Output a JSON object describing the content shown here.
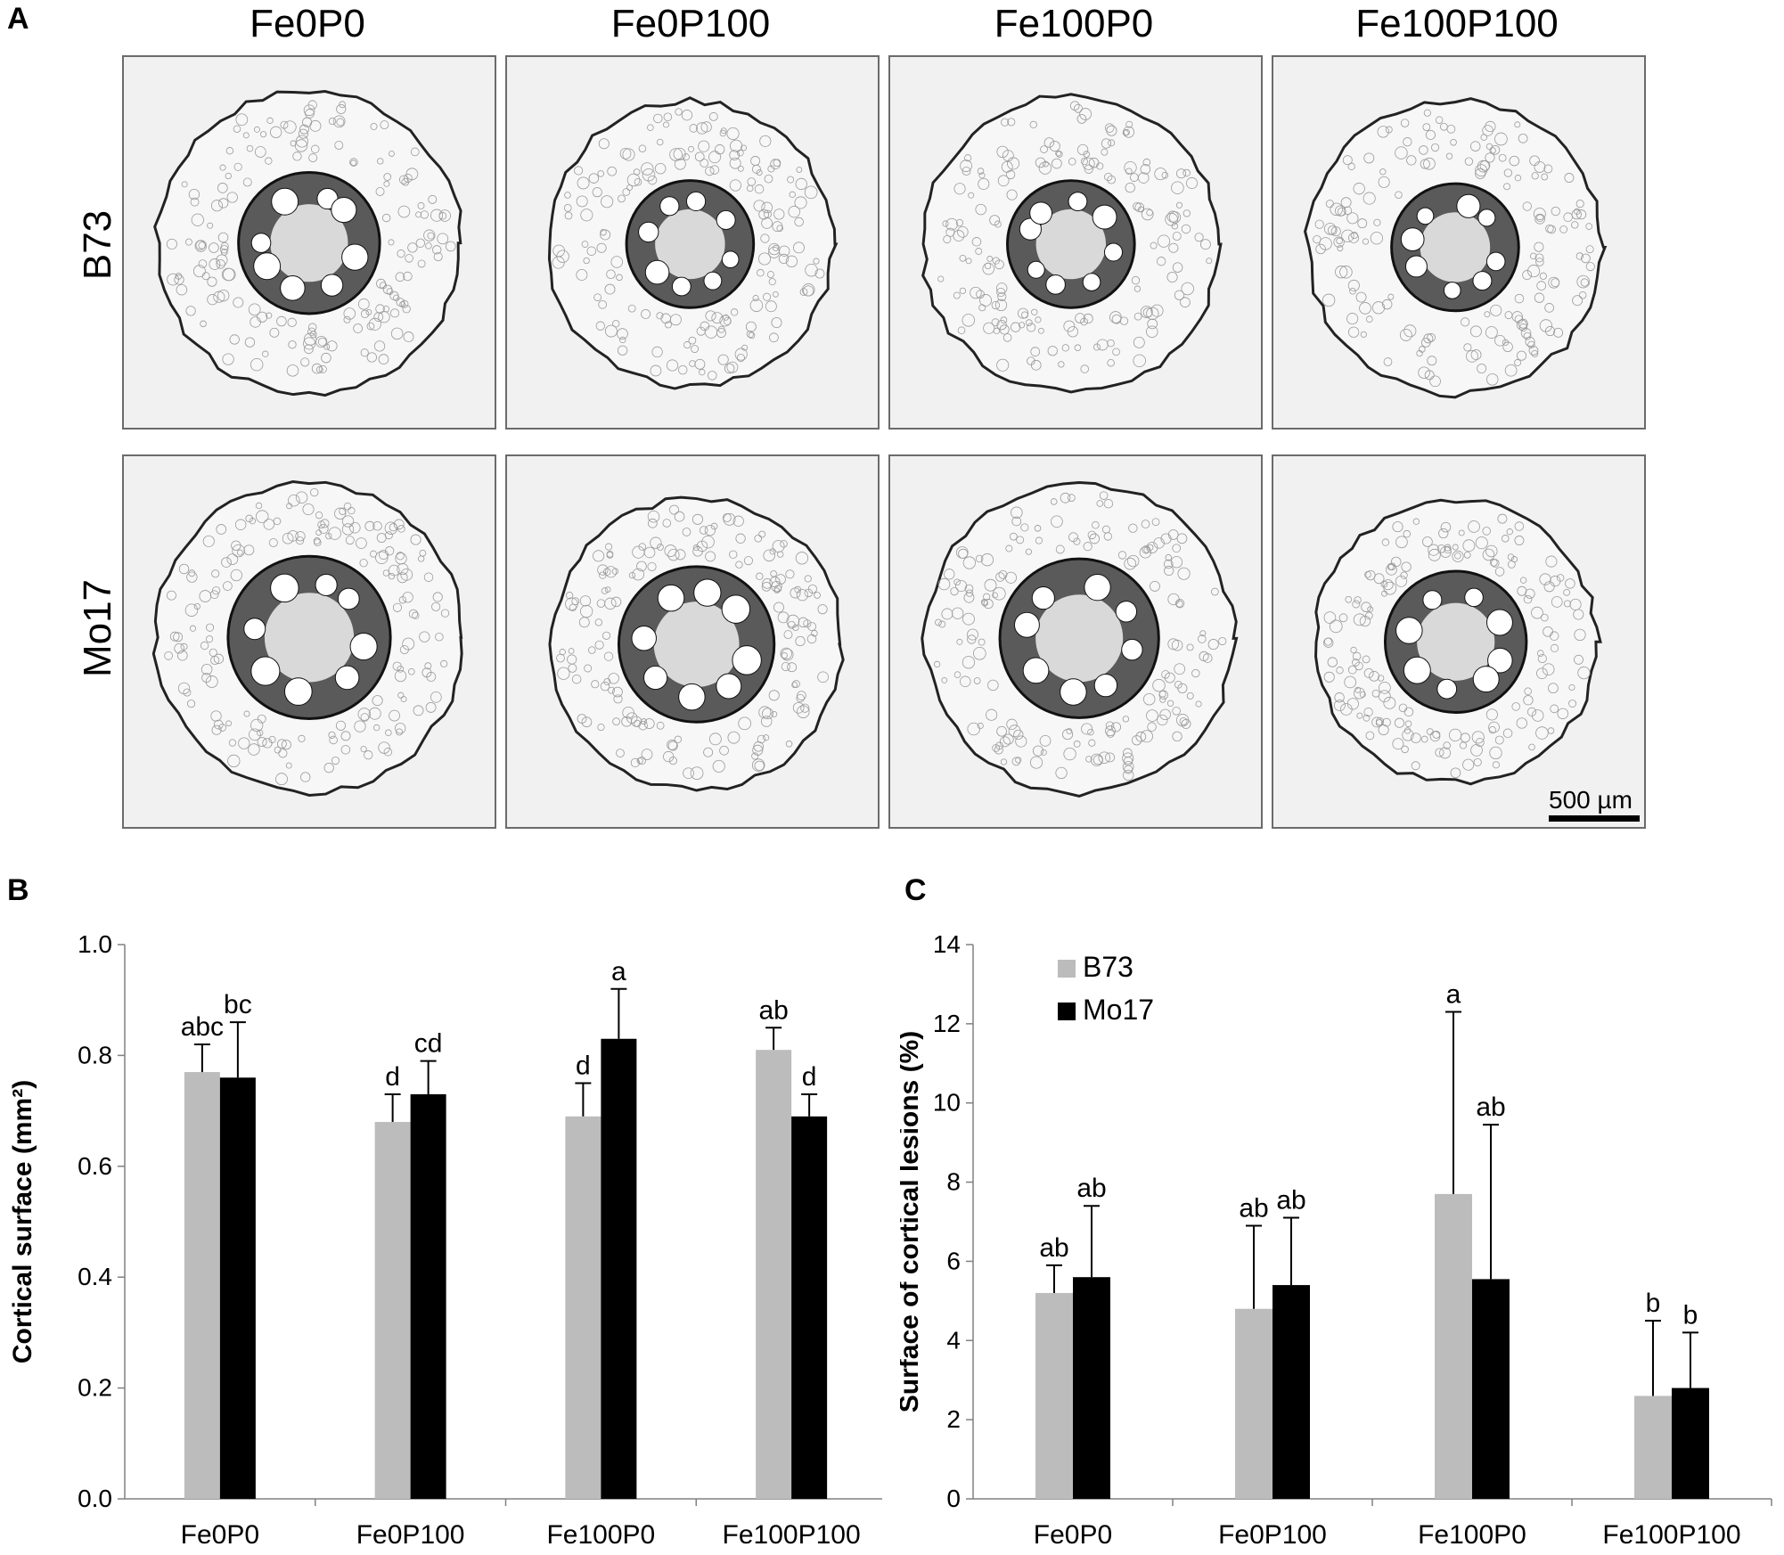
{
  "panel_a": {
    "letter": "A",
    "columns": [
      "Fe0P0",
      "Fe0P100",
      "Fe100P0",
      "Fe100P100"
    ],
    "rows": [
      "B73",
      "Mo17"
    ],
    "scale_bar_label": "500 µm",
    "micrographs": [
      {
        "row": "B73",
        "column": "Fe0P0"
      },
      {
        "row": "B73",
        "column": "Fe0P100"
      },
      {
        "row": "B73",
        "column": "Fe100P0"
      },
      {
        "row": "B73",
        "column": "Fe100P100"
      },
      {
        "row": "Mo17",
        "column": "Fe0P0"
      },
      {
        "row": "Mo17",
        "column": "Fe0P100"
      },
      {
        "row": "Mo17",
        "column": "Fe100P0"
      },
      {
        "row": "Mo17",
        "column": "Fe100P100"
      }
    ]
  },
  "chart_data": [
    {
      "panel": "B",
      "type": "bar",
      "categories": [
        "Fe0P0",
        "Fe0P100",
        "Fe100P0",
        "Fe100P100"
      ],
      "ylabel": "Cortical surface (mm²)",
      "ylim": [
        0,
        1.0
      ],
      "yticks": [
        "0.0",
        "0.2",
        "0.4",
        "0.6",
        "0.8",
        "1.0"
      ],
      "legend": "none",
      "series": [
        {
          "name": "B73",
          "color": "#bcbcbc",
          "values": [
            0.77,
            0.68,
            0.69,
            0.81
          ],
          "errors": [
            0.05,
            0.05,
            0.06,
            0.04
          ],
          "letters": [
            "abc",
            "d",
            "d",
            "ab"
          ]
        },
        {
          "name": "Mo17",
          "color": "#000000",
          "values": [
            0.76,
            0.73,
            0.83,
            0.69
          ],
          "errors": [
            0.1,
            0.06,
            0.09,
            0.04
          ],
          "letters": [
            "bc",
            "cd",
            "a",
            "d"
          ]
        }
      ]
    },
    {
      "panel": "C",
      "type": "bar",
      "categories": [
        "Fe0P0",
        "Fe0P100",
        "Fe100P0",
        "Fe100P100"
      ],
      "ylabel": "Surface of cortical lesions (%)",
      "ylim": [
        0,
        14
      ],
      "yticks": [
        "0",
        "2",
        "4",
        "6",
        "8",
        "10",
        "12",
        "14"
      ],
      "legend": "top-left",
      "series": [
        {
          "name": "B73",
          "color": "#bcbcbc",
          "values": [
            5.2,
            4.8,
            7.7,
            2.6
          ],
          "errors": [
            0.7,
            2.1,
            4.6,
            1.9
          ],
          "letters": [
            "ab",
            "ab",
            "a",
            "b"
          ]
        },
        {
          "name": "Mo17",
          "color": "#000000",
          "values": [
            5.6,
            5.4,
            5.55,
            2.8
          ],
          "errors": [
            1.8,
            1.7,
            3.9,
            1.4
          ],
          "letters": [
            "ab",
            "ab",
            "ab",
            "b"
          ]
        }
      ]
    }
  ]
}
